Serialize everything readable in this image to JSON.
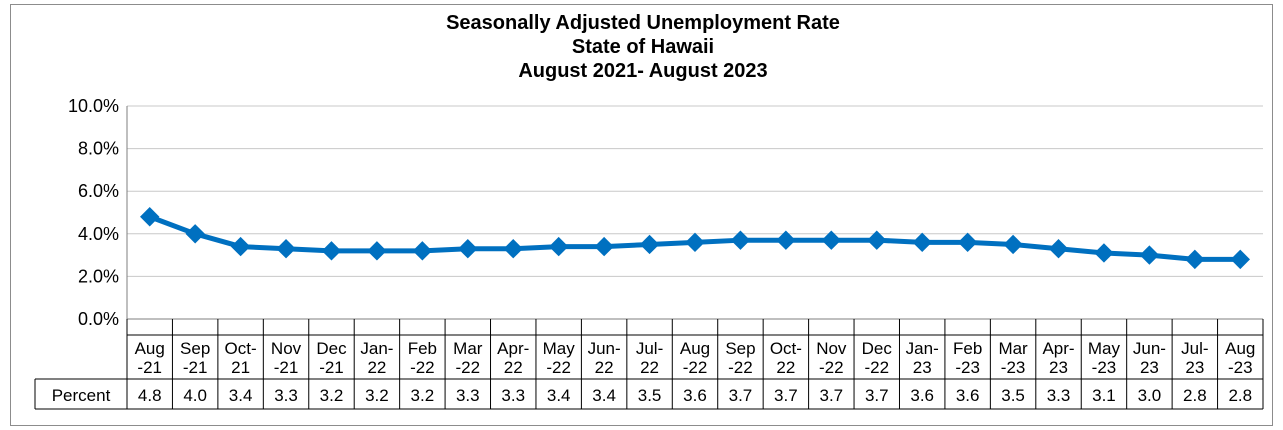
{
  "chart_data": {
    "type": "line",
    "title": [
      "Seasonally Adjusted Unemployment Rate",
      "State of Hawaii",
      "August 2021- August 2023"
    ],
    "categories": [
      [
        "Aug",
        "-21"
      ],
      [
        "Sep",
        "-21"
      ],
      [
        "Oct-",
        "21"
      ],
      [
        "Nov",
        "-21"
      ],
      [
        "Dec",
        "-21"
      ],
      [
        "Jan-",
        "22"
      ],
      [
        "Feb",
        "-22"
      ],
      [
        "Mar",
        "-22"
      ],
      [
        "Apr-",
        "22"
      ],
      [
        "May",
        "-22"
      ],
      [
        "Jun-",
        "22"
      ],
      [
        "Jul-",
        "22"
      ],
      [
        "Aug",
        "-22"
      ],
      [
        "Sep",
        "-22"
      ],
      [
        "Oct-",
        "22"
      ],
      [
        "Nov",
        "-22"
      ],
      [
        "Dec",
        "-22"
      ],
      [
        "Jan-",
        "23"
      ],
      [
        "Feb",
        "-23"
      ],
      [
        "Mar",
        "-23"
      ],
      [
        "Apr-",
        "23"
      ],
      [
        "May",
        "-23"
      ],
      [
        "Jun-",
        "23"
      ],
      [
        "Jul-",
        "23"
      ],
      [
        "Aug",
        "-23"
      ]
    ],
    "series": [
      {
        "name": "Percent",
        "values": [
          4.8,
          4.0,
          3.4,
          3.3,
          3.2,
          3.2,
          3.2,
          3.3,
          3.3,
          3.4,
          3.4,
          3.5,
          3.6,
          3.7,
          3.7,
          3.7,
          3.7,
          3.6,
          3.6,
          3.5,
          3.3,
          3.1,
          3.0,
          2.8,
          2.8
        ],
        "labels": [
          "4.8",
          "4.0",
          "3.4",
          "3.3",
          "3.2",
          "3.2",
          "3.2",
          "3.3",
          "3.3",
          "3.4",
          "3.4",
          "3.5",
          "3.6",
          "3.7",
          "3.7",
          "3.7",
          "3.7",
          "3.6",
          "3.6",
          "3.5",
          "3.3",
          "3.1",
          "3.0",
          "2.8",
          "2.8"
        ],
        "color": "#0070C0"
      }
    ],
    "yticks": [
      "0.0%",
      "2.0%",
      "4.0%",
      "6.0%",
      "8.0%",
      "10.0%"
    ],
    "ylim": [
      0,
      10
    ],
    "grid": true,
    "legend": "data-table-below"
  }
}
